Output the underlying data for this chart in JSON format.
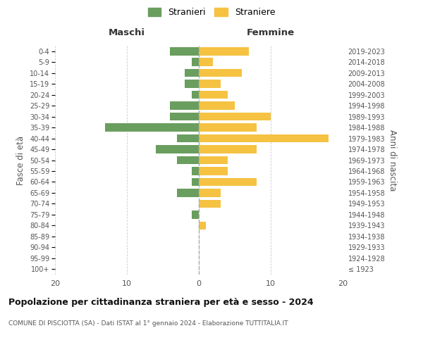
{
  "age_groups": [
    "100+",
    "95-99",
    "90-94",
    "85-89",
    "80-84",
    "75-79",
    "70-74",
    "65-69",
    "60-64",
    "55-59",
    "50-54",
    "45-49",
    "40-44",
    "35-39",
    "30-34",
    "25-29",
    "20-24",
    "15-19",
    "10-14",
    "5-9",
    "0-4"
  ],
  "birth_years": [
    "≤ 1923",
    "1924-1928",
    "1929-1933",
    "1934-1938",
    "1939-1943",
    "1944-1948",
    "1949-1953",
    "1954-1958",
    "1959-1963",
    "1964-1968",
    "1969-1973",
    "1974-1978",
    "1979-1983",
    "1984-1988",
    "1989-1993",
    "1994-1998",
    "1999-2003",
    "2004-2008",
    "2009-2013",
    "2014-2018",
    "2019-2023"
  ],
  "maschi": [
    0,
    0,
    0,
    0,
    0,
    1,
    0,
    3,
    1,
    1,
    3,
    6,
    3,
    13,
    4,
    4,
    1,
    2,
    2,
    1,
    4
  ],
  "femmine": [
    0,
    0,
    0,
    0,
    1,
    0,
    3,
    3,
    8,
    4,
    4,
    8,
    18,
    8,
    10,
    5,
    4,
    3,
    6,
    2,
    7
  ],
  "color_maschi": "#6a9e5e",
  "color_femmine": "#f5c242",
  "title": "Popolazione per cittadinanza straniera per età e sesso - 2024",
  "subtitle": "COMUNE DI PISCIOTTA (SA) - Dati ISTAT al 1° gennaio 2024 - Elaborazione TUTTITALIA.IT",
  "ylabel_left": "Fasce di età",
  "ylabel_right": "Anni di nascita",
  "xlabel_left": "Maschi",
  "xlabel_top_right": "Femmine",
  "legend_maschi": "Stranieri",
  "legend_femmine": "Straniere",
  "xlim": 20,
  "background_color": "#ffffff",
  "grid_color": "#cccccc"
}
